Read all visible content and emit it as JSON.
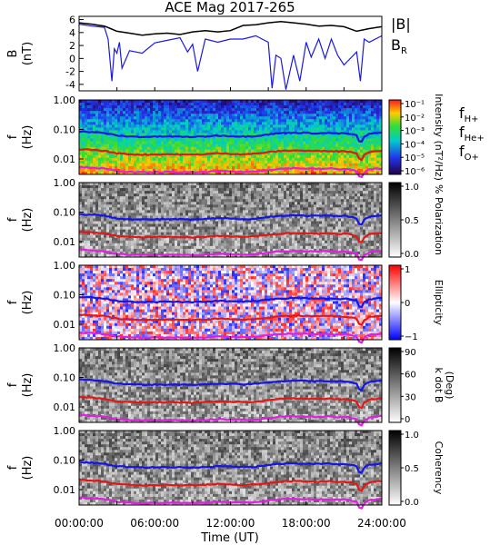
{
  "chart_data": [
    {
      "type": "line",
      "title": "ACE Mag 2017-265",
      "ylabel": "B",
      "ylabel_unit": "(nT)",
      "ylim": [
        -5,
        6.5
      ],
      "yticks": [
        "6",
        "4",
        "2",
        "0",
        "-2",
        "-4"
      ],
      "xlim": [
        0,
        24
      ],
      "legend_position": "right",
      "series": [
        {
          "name": "|B|",
          "color": "#000000",
          "x": [
            0,
            1,
            2,
            2.5,
            3,
            4,
            5,
            6,
            7,
            8,
            9,
            10,
            11,
            12,
            13,
            14,
            15,
            16,
            17,
            18,
            19,
            20,
            21,
            22,
            23,
            24
          ],
          "values": [
            5.5,
            5.3,
            5.0,
            4.6,
            4.2,
            3.9,
            3.6,
            3.8,
            3.9,
            3.7,
            4.1,
            4.3,
            4.1,
            4.3,
            5.1,
            5.2,
            5.5,
            5.7,
            5.5,
            5.3,
            5.0,
            5.1,
            4.9,
            4.2,
            4.6,
            4.9
          ]
        },
        {
          "name": "B",
          "name_subscript": "R",
          "color": "#1a1adf",
          "x": [
            0,
            1,
            2,
            2.3,
            2.6,
            2.8,
            3.0,
            3.2,
            3.4,
            4,
            5,
            6,
            7,
            8,
            8.6,
            9,
            9.4,
            10,
            11,
            12,
            13,
            14,
            15.0,
            15.3,
            15.6,
            16,
            16.4,
            17,
            17.5,
            18,
            18.4,
            19,
            19.5,
            20,
            20.5,
            21,
            22,
            22.3,
            22.6,
            23,
            24
          ],
          "values": [
            5.3,
            5.0,
            4.8,
            3.0,
            -3.5,
            1.5,
            0.8,
            2.5,
            -1.5,
            1.2,
            0.8,
            2.4,
            2.8,
            3.2,
            1.0,
            2.2,
            -2.0,
            3.0,
            2.5,
            3.0,
            3.0,
            3.5,
            2.5,
            -4.6,
            0.5,
            0.0,
            -4.8,
            0.5,
            -3.5,
            2.5,
            0.2,
            3.0,
            0.0,
            3.0,
            0.5,
            -1.0,
            1.0,
            -3.5,
            3.0,
            2.5,
            3.5
          ]
        }
      ]
    },
    {
      "type": "heatmap",
      "ylabel": "f",
      "ylabel_unit": "(Hz)",
      "ylog": true,
      "ylim": [
        0.003,
        1.0
      ],
      "yticks": [
        "1.00",
        "0.10",
        "0.01"
      ],
      "colorbar_label": "Intensity (nT²/Hz)",
      "colorbar_ticks": [
        "10⁻¹",
        "10⁻²",
        "10⁻³",
        "10⁻⁴",
        "10⁻⁵",
        "10⁻⁶"
      ],
      "colormap": "rainbow"
    },
    {
      "type": "heatmap",
      "ylabel": "f",
      "ylabel_unit": "(Hz)",
      "ylog": true,
      "ylim": [
        0.003,
        1.0
      ],
      "yticks": [
        "1.00",
        "0.10",
        "0.01"
      ],
      "colorbar_label": "% Polarization",
      "colorbar_ticks": [
        "1.0",
        "0.5",
        "0.0"
      ],
      "colormap": "gray"
    },
    {
      "type": "heatmap",
      "ylabel": "f",
      "ylabel_unit": "(Hz)",
      "ylog": true,
      "ylim": [
        0.003,
        1.0
      ],
      "yticks": [
        "1.00",
        "0.10",
        "0.01"
      ],
      "colorbar_label": "Ellipticity",
      "colorbar_ticks": [
        "1",
        "0",
        "−1"
      ],
      "colormap": "blue-white-red"
    },
    {
      "type": "heatmap",
      "ylabel": "f",
      "ylabel_unit": "(Hz)",
      "ylog": true,
      "ylim": [
        0.003,
        1.0
      ],
      "yticks": [
        "1.00",
        "0.10",
        "0.01"
      ],
      "colorbar_label": "k dot B",
      "colorbar_unit": "(Deg)",
      "colorbar_ticks": [
        "90",
        "60",
        "30",
        "0"
      ],
      "colormap": "gray"
    },
    {
      "type": "heatmap",
      "ylabel": "f",
      "ylabel_unit": "(Hz)",
      "ylog": true,
      "ylim": [
        0.003,
        1.0
      ],
      "yticks": [
        "1.00",
        "0.10",
        "0.01"
      ],
      "colorbar_label": "Coherency",
      "colorbar_ticks": [
        "1.0",
        "0.5",
        "0.0"
      ],
      "colormap": "gray",
      "xlabel": "Time (UT)",
      "xticks": [
        "00:00:00",
        "06:00:00",
        "12:00:00",
        "18:00:00",
        "24:00:00"
      ]
    }
  ],
  "gyro_lines": {
    "x": [
      0,
      1,
      2,
      3,
      4,
      5,
      6,
      7,
      8,
      9,
      10,
      11,
      12,
      13,
      14,
      15,
      16,
      17,
      18,
      19,
      20,
      20.5,
      21,
      21.5,
      22,
      22.3,
      22.6,
      23,
      24
    ],
    "fH_values": [
      0.085,
      0.082,
      0.075,
      0.062,
      0.058,
      0.056,
      0.057,
      0.058,
      0.057,
      0.056,
      0.058,
      0.062,
      0.06,
      0.058,
      0.06,
      0.068,
      0.075,
      0.078,
      0.076,
      0.074,
      0.076,
      0.072,
      0.074,
      0.07,
      0.062,
      0.03,
      0.055,
      0.07,
      0.078
    ],
    "series": [
      {
        "name": "f",
        "name_subscript": "H+",
        "color": "#1515e6",
        "factor": 1.0
      },
      {
        "name": "f",
        "name_subscript": "He+",
        "color": "#e01818",
        "factor": 0.25
      },
      {
        "name": "f",
        "name_subscript": "O+",
        "color": "#e020e0",
        "factor": 0.0625
      }
    ]
  }
}
